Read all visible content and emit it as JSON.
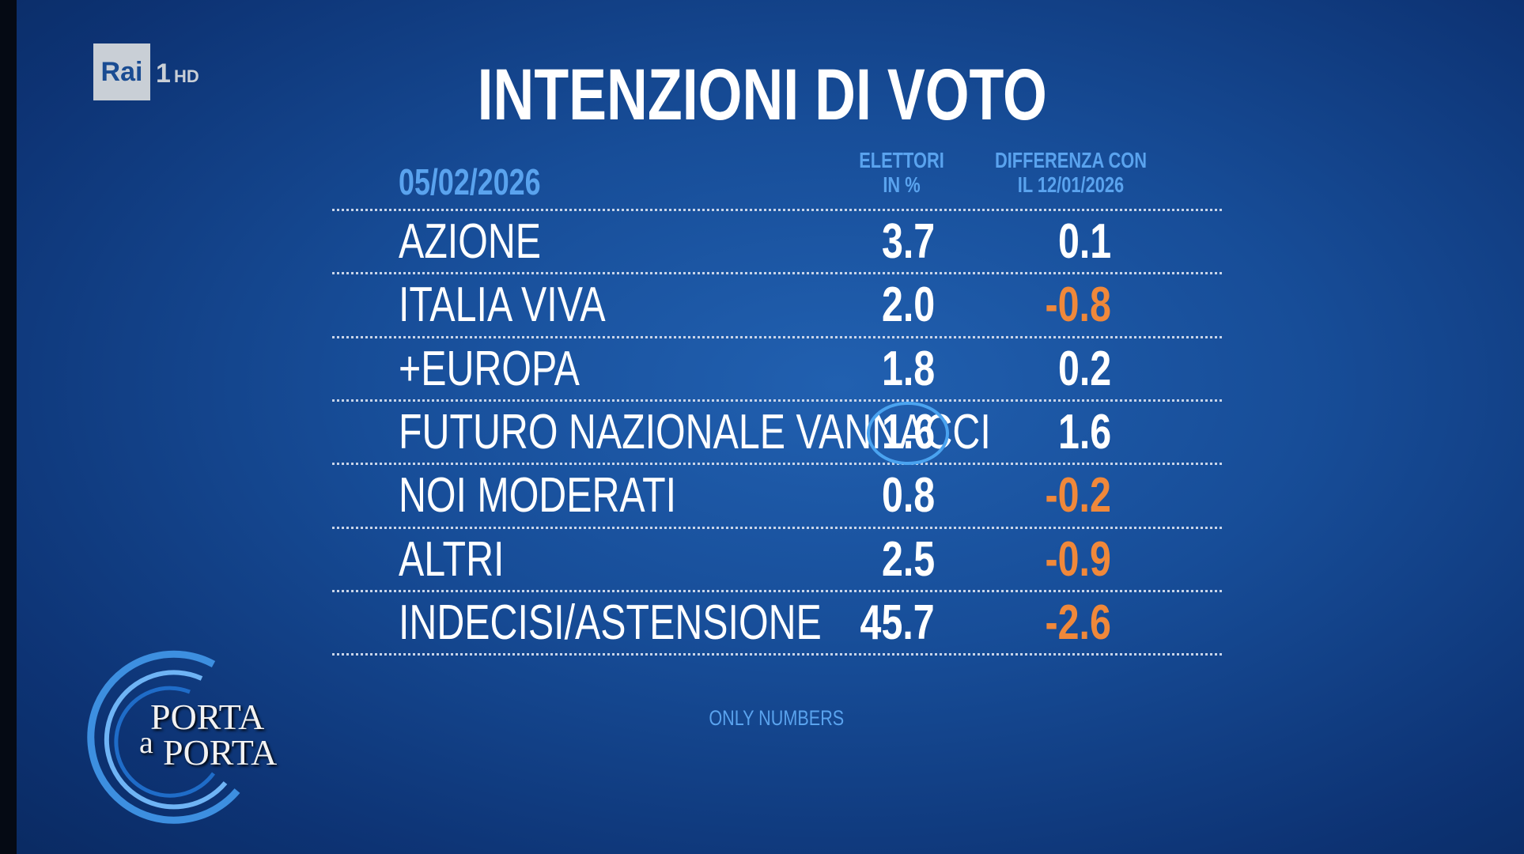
{
  "logo": {
    "brand": "Rai",
    "channel": "1",
    "quality": "HD"
  },
  "title": "INTENZIONI DI VOTO",
  "table": {
    "date": "05/02/2026",
    "headers": [
      [
        "ELETTORI",
        "IN %"
      ],
      [
        "DIFFERENZA CON",
        "IL 12/01/2026"
      ]
    ],
    "rows": [
      [
        "AZIONE",
        "3.7",
        "0.1"
      ],
      [
        "ITALIA VIVA",
        "2.0",
        "-0.8"
      ],
      [
        "+EUROPA",
        "1.8",
        "0.2"
      ],
      [
        "FUTURO NAZIONALE VANNACCI",
        "1.6",
        "1.6"
      ],
      [
        "NOI MODERATI",
        "0.8",
        "-0.2"
      ],
      [
        "ALTRI",
        "2.5",
        "-0.9"
      ],
      [
        "INDECISI/ASTENSIONE",
        "45.7",
        "-2.6"
      ]
    ]
  },
  "footer": "ONLY NUMBERS",
  "show_logo": [
    "PORTA",
    "a",
    "PORTA"
  ]
}
